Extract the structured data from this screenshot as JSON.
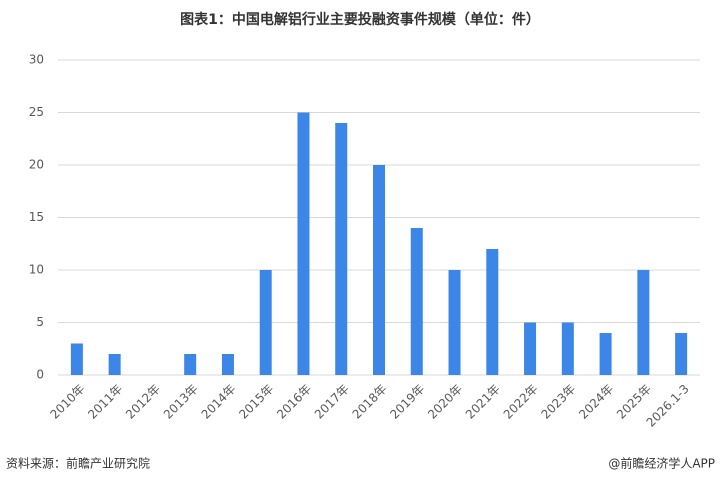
{
  "chart_data": {
    "type": "bar",
    "title": "图表1：中国电解铝行业主要投融资事件规模（单位：件）",
    "categories": [
      "2010年",
      "2011年",
      "2012年",
      "2013年",
      "2014年",
      "2015年",
      "2016年",
      "2017年",
      "2018年",
      "2019年",
      "2020年",
      "2021年",
      "2022年",
      "2023年",
      "2024年",
      "2025年",
      "2026.1-3"
    ],
    "values": [
      3,
      2,
      0,
      2,
      2,
      10,
      25,
      24,
      20,
      14,
      10,
      12,
      5,
      5,
      4,
      10,
      4
    ],
    "color": "#3b86e6",
    "ylim": [
      0,
      30
    ],
    "yticks": [
      0,
      5,
      10,
      15,
      20,
      25,
      30
    ],
    "grid": true,
    "source": "资料来源：前瞻产业研究院",
    "credit": "@前瞻经济学人APP"
  }
}
